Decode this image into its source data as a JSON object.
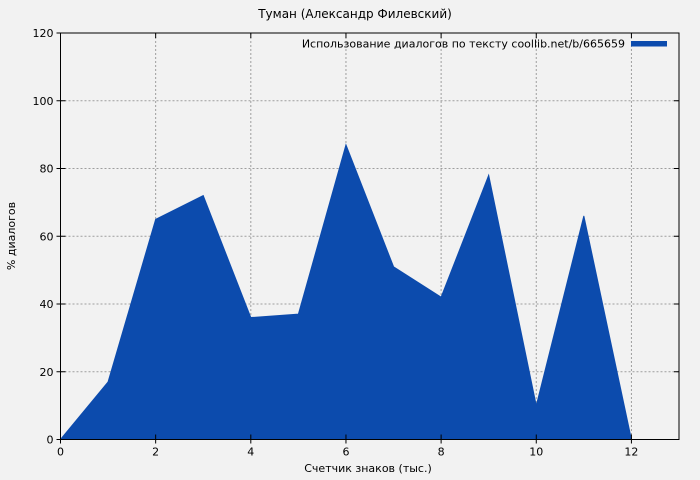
{
  "window": {
    "background_color": "#f2f2f2"
  },
  "chart_data": {
    "type": "area",
    "title": "Туман (Александр Филевский)",
    "xlabel": "Счетчик знаков (тыс.)",
    "ylabel": "% диалогов",
    "legend": {
      "label": "Использование диалогов по тексту coollib.net/b/665659",
      "position": "top-right"
    },
    "x": [
      0,
      1,
      2,
      3,
      4,
      5,
      6,
      7,
      8,
      9,
      10,
      11,
      12
    ],
    "values": [
      0,
      17,
      65,
      72,
      36,
      37,
      87,
      51,
      42,
      78,
      10,
      66,
      0
    ],
    "xlim": [
      0,
      13
    ],
    "ylim": [
      0,
      120
    ],
    "x_ticks": [
      0,
      2,
      4,
      6,
      8,
      10,
      12
    ],
    "y_ticks": [
      0,
      20,
      40,
      60,
      80,
      100,
      120
    ],
    "grid": true,
    "colors": {
      "fill": "#0c4bad",
      "grid": "#9e9e9e",
      "border": "#000000",
      "text": "#000000",
      "background": "#f2f2f2"
    }
  }
}
